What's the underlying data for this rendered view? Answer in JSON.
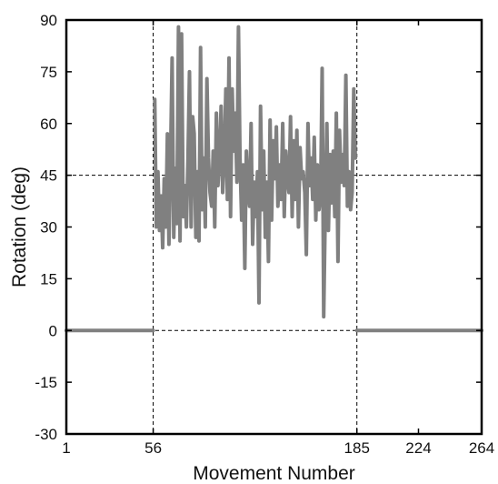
{
  "chart_data": {
    "type": "line",
    "title": "",
    "xlabel": "Movement Number",
    "ylabel": "Rotation (deg)",
    "xlim": [
      1,
      264
    ],
    "ylim": [
      -30,
      90
    ],
    "x_ticks": [
      1,
      56,
      185,
      224,
      264
    ],
    "y_ticks": [
      -30,
      -15,
      0,
      15,
      30,
      45,
      60,
      75,
      90
    ],
    "grid": false,
    "reference_lines": {
      "vertical": [
        56,
        185
      ],
      "horizontal": [
        0,
        45
      ]
    },
    "colors": {
      "series": "#808080",
      "axes": "#000000",
      "reference": "#000000"
    },
    "series": [
      {
        "segments": [
          {
            "x": [
              1,
              56
            ],
            "y": [
              0,
              0
            ]
          },
          {
            "x": [
              57,
              58,
              59,
              60,
              61,
              62,
              63,
              64,
              65,
              66,
              67,
              68,
              69,
              70,
              71,
              72,
              73,
              74,
              75,
              76,
              77,
              78,
              79,
              80,
              81,
              82,
              83,
              84,
              85,
              86,
              87,
              88,
              89,
              90,
              91,
              92,
              93,
              94,
              95,
              96,
              97,
              98,
              99,
              100,
              101,
              102,
              103,
              104,
              105,
              106,
              107,
              108,
              109,
              110,
              111,
              112,
              113,
              114,
              115,
              116,
              117,
              118,
              119,
              120,
              121,
              122,
              123,
              124,
              125,
              126,
              127,
              128,
              129,
              130,
              131,
              132,
              133,
              134,
              135,
              136,
              137,
              138,
              139,
              140,
              141,
              142,
              143,
              144,
              145,
              146,
              147,
              148,
              149,
              150,
              151,
              152,
              153,
              154,
              155,
              156,
              157,
              158,
              159,
              160,
              161,
              162,
              163,
              164,
              165,
              166,
              167,
              168,
              169,
              170,
              171,
              172,
              173,
              174,
              175,
              176,
              177,
              178,
              179,
              180,
              181,
              182,
              183,
              184
            ],
            "y": [
              67,
              30,
              46,
              29,
              39,
              24,
              44,
              30,
              57,
              25,
              50,
              79,
              27,
              47,
              31,
              88,
              26,
              86,
              33,
              42,
              30,
              49,
              75,
              30,
              62,
              57,
              27,
              46,
              26,
              82,
              35,
              50,
              30,
              73,
              50,
              40,
              36,
              52,
              30,
              63,
              42,
              50,
              65,
              40,
              50,
              70,
              38,
              79,
              33,
              70,
              52,
              63,
              43,
              88,
              50,
              32,
              48,
              18,
              52,
              41,
              36,
              60,
              25,
              43,
              33,
              46,
              8,
              65,
              35,
              52,
              27,
              43,
              20,
              61,
              32,
              55,
              44,
              59,
              36,
              48,
              38,
              60,
              33,
              52,
              44,
              40,
              62,
              33,
              55,
              38,
              58,
              30,
              53,
              44,
              46,
              40,
              22,
              60,
              42,
              50,
              38,
              56,
              32,
              48,
              35,
              39,
              76,
              4,
              36,
              60,
              29,
              51,
              37,
              52,
              33,
              63,
              20,
              58,
              43,
              51,
              42,
              74,
              36,
              46,
              35,
              40,
              70,
              50
            ]
          },
          {
            "x": [
              185,
              264
            ],
            "y": [
              0,
              0
            ]
          }
        ]
      }
    ]
  }
}
